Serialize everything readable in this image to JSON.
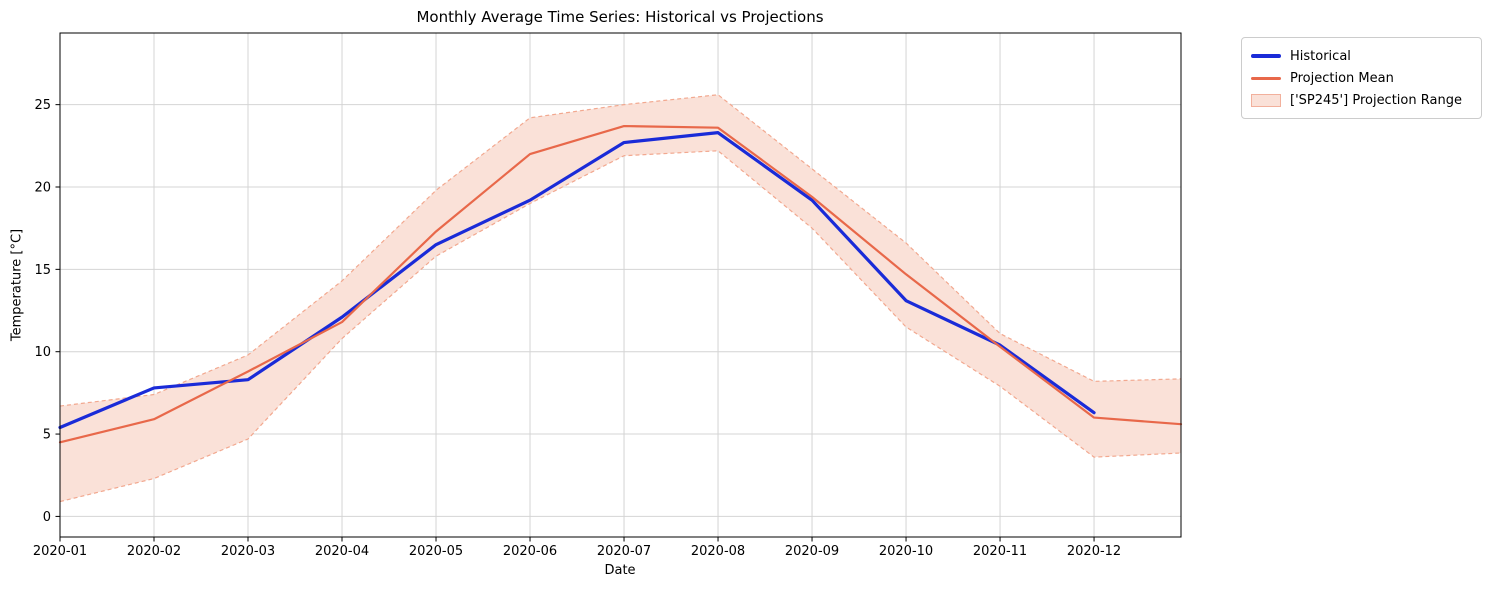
{
  "title": "Monthly Average Time Series: Historical vs Projections",
  "axes": {
    "xlabel": "Date",
    "ylabel": "Temperature [°C]"
  },
  "legend": {
    "position": "outside-upper-right",
    "items": [
      {
        "label": "Historical",
        "swatch": "line-thick",
        "color": "#1a2bd8"
      },
      {
        "label": "Projection Mean",
        "swatch": "line",
        "color": "#e8684a"
      },
      {
        "label": "['SP245'] Projection Range",
        "swatch": "patch",
        "color": "#fae1d8",
        "edge": "#f2b09c"
      }
    ]
  },
  "chart_data": {
    "type": "line",
    "title": "Monthly Average Time Series: Historical vs Projections",
    "xlabel": "Date",
    "ylabel": "Temperature [°C]",
    "grid": true,
    "grid_color": "#d4d4d4",
    "x_ticks": [
      "2020-01",
      "2020-02",
      "2020-03",
      "2020-04",
      "2020-05",
      "2020-06",
      "2020-07",
      "2020-08",
      "2020-09",
      "2020-10",
      "2020-11",
      "2020-12"
    ],
    "y_ticks": [
      0,
      5,
      10,
      15,
      20,
      25
    ],
    "ylim": [
      -1.25,
      29.35
    ],
    "xlim_months": [
      0,
      11.925
    ],
    "series": [
      {
        "name": "Historical",
        "kind": "line",
        "color": "#1a2bd8",
        "width": 3.2,
        "x": [
          0,
          1,
          2,
          3,
          4,
          5,
          6,
          7,
          8,
          9,
          10,
          11
        ],
        "values": [
          5.4,
          7.8,
          8.3,
          12.1,
          16.5,
          19.2,
          22.7,
          23.3,
          19.2,
          13.1,
          10.4,
          6.3
        ]
      },
      {
        "name": "Projection Mean",
        "kind": "line",
        "color": "#e8684a",
        "width": 2.2,
        "x": [
          0,
          1,
          2,
          3,
          4,
          5,
          6,
          7,
          8,
          9,
          10,
          11,
          11.925
        ],
        "values": [
          4.5,
          5.9,
          8.8,
          11.8,
          17.3,
          22.0,
          23.7,
          23.6,
          19.4,
          14.7,
          10.3,
          6.0,
          5.6
        ]
      },
      {
        "name": "['SP245'] Projection Range",
        "kind": "band",
        "fill": "#fae1d8",
        "edge_color": "#f2a88f",
        "edge_style": "dashed",
        "x": [
          0,
          1,
          2,
          3,
          4,
          5,
          6,
          7,
          8,
          9,
          10,
          11,
          11.925
        ],
        "upper": [
          6.7,
          7.4,
          9.8,
          14.3,
          19.8,
          24.2,
          25.0,
          25.6,
          21.1,
          16.6,
          11.1,
          8.2,
          8.35
        ],
        "lower": [
          0.9,
          2.3,
          4.7,
          10.8,
          15.8,
          19.0,
          21.9,
          22.2,
          17.5,
          11.5,
          7.9,
          3.6,
          3.85
        ]
      }
    ]
  }
}
